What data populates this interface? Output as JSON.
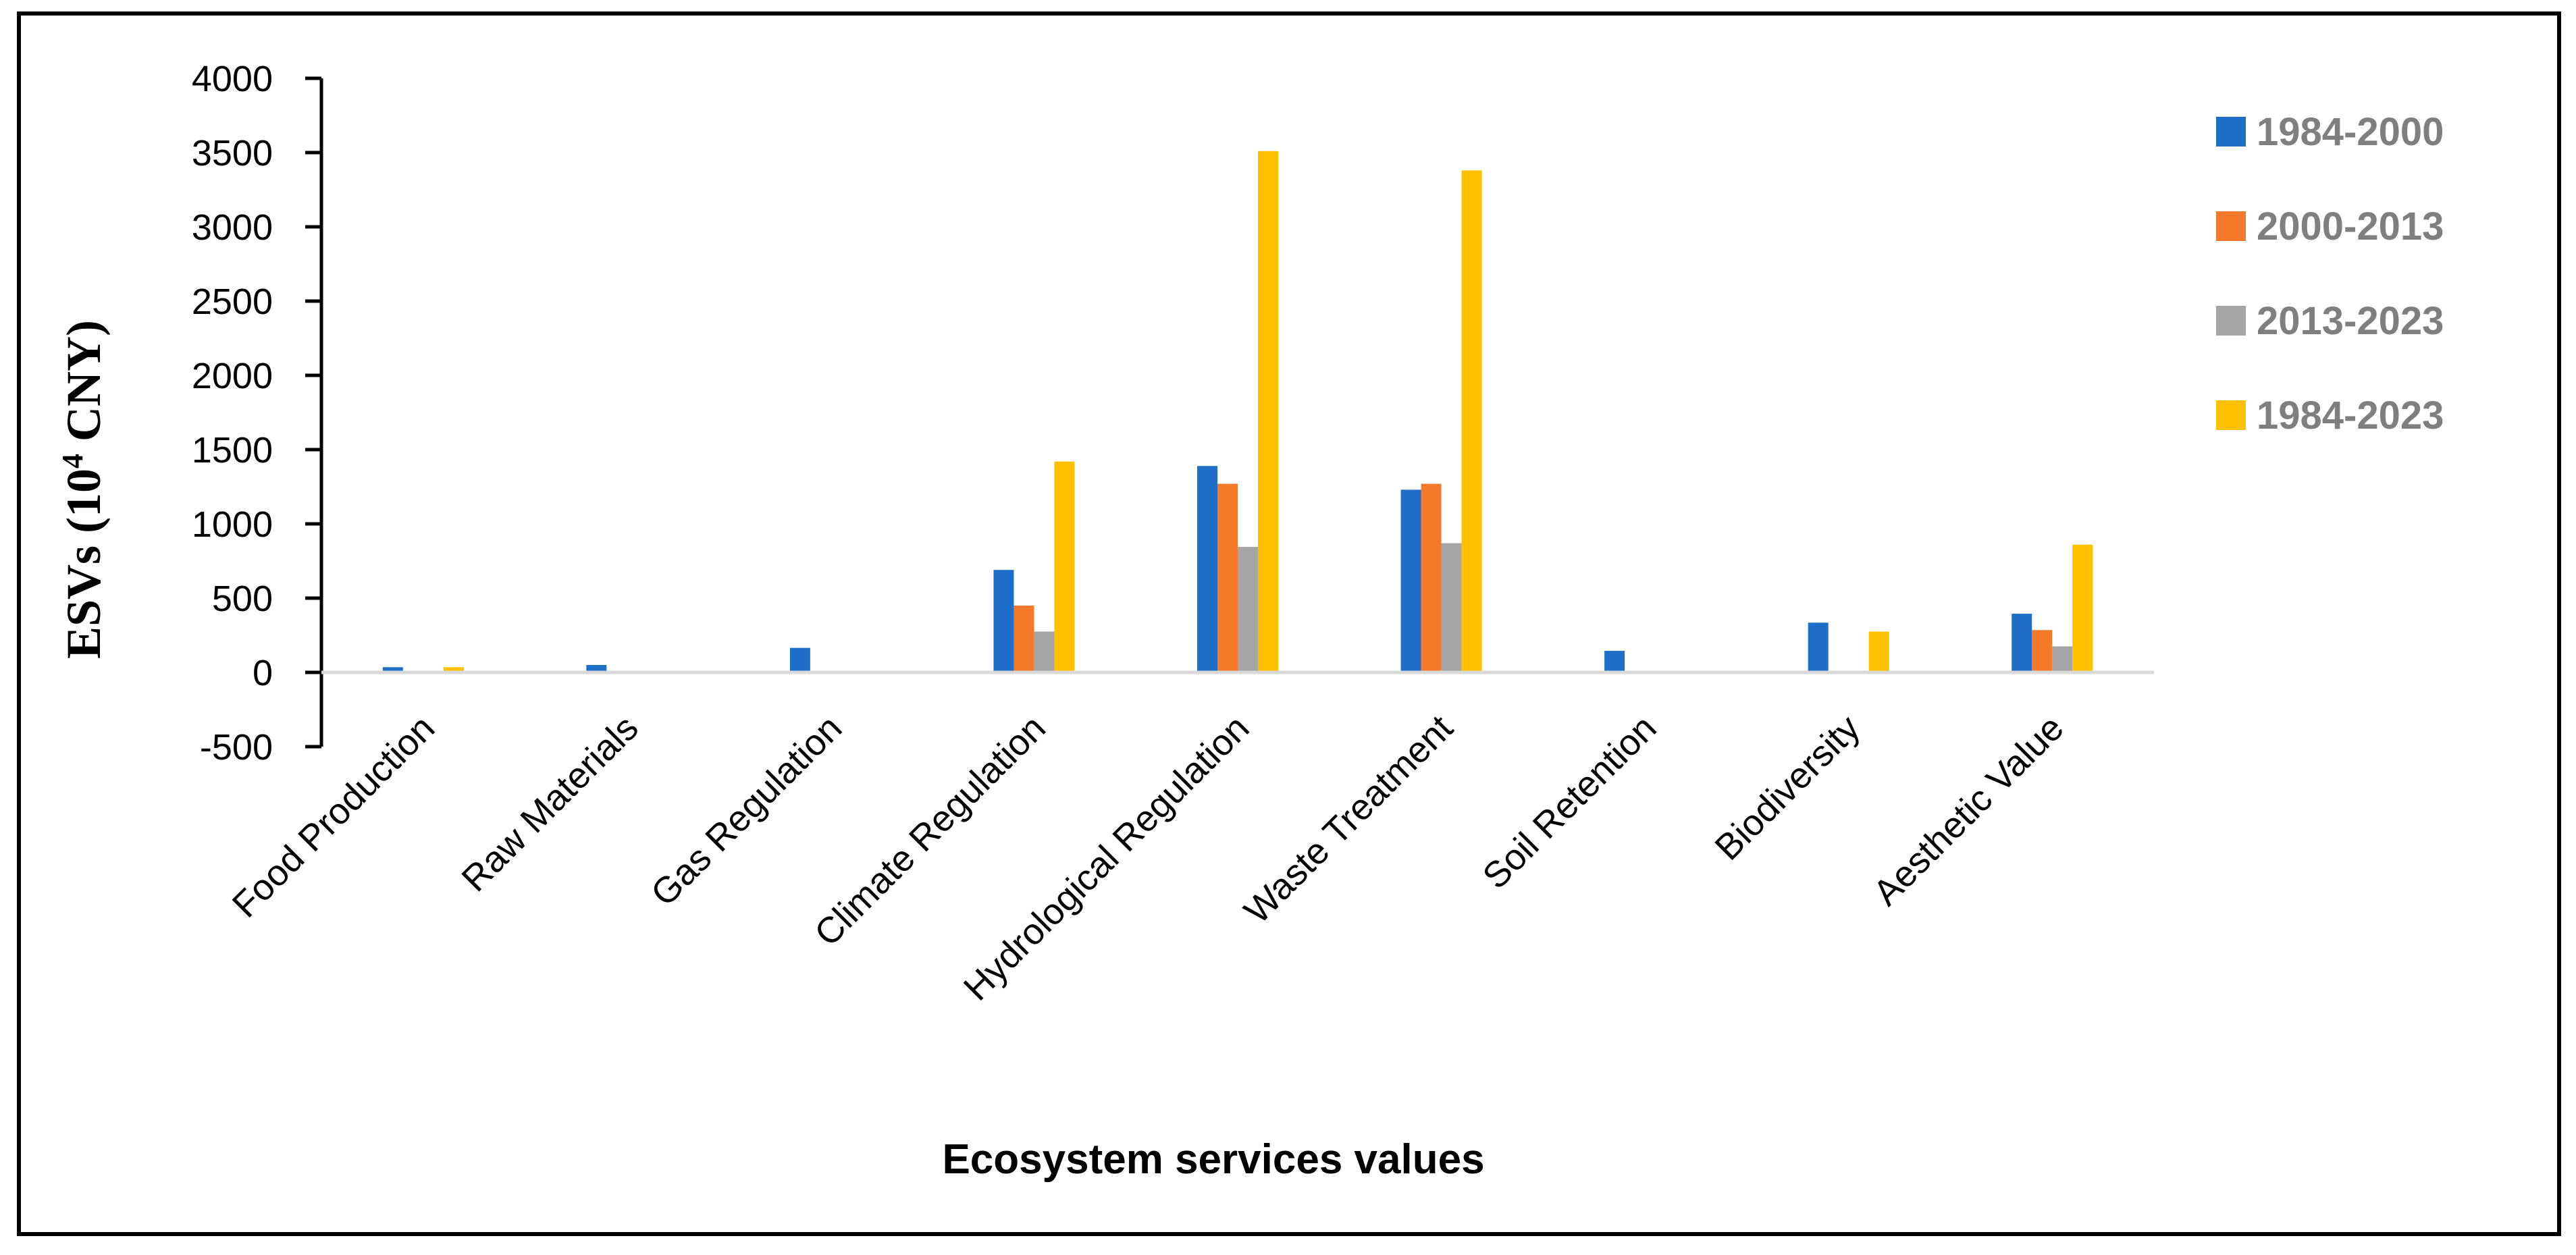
{
  "chart_data": {
    "type": "bar",
    "title": "",
    "xlabel": "Ecosystem services values",
    "ylabel": {
      "main": "ESVs (10",
      "superscript": "4",
      "suffix": " CNY)"
    },
    "ylim": [
      -500,
      4000
    ],
    "yticks": [
      "4000",
      "3500",
      "3000",
      "2500",
      "2000",
      "1500",
      "1000",
      "500",
      "0",
      "-500"
    ],
    "ytick_values": [
      4000,
      3500,
      3000,
      2500,
      2000,
      1500,
      1000,
      500,
      0,
      -500
    ],
    "grid": false,
    "legend_position": "right",
    "categories": [
      "Food Production",
      "Raw Materials",
      "Gas Regulation",
      "Climate Regulation",
      "Hydrological Regulation",
      "Waste Treatment",
      "Soil Retention",
      "Biodiversity",
      "Aesthetic Value"
    ],
    "series": [
      {
        "name": "1984-2000",
        "color": "#1f6fc9",
        "values": [
          35,
          50,
          165,
          690,
          1390,
          1230,
          145,
          335,
          395
        ]
      },
      {
        "name": "2000-2013",
        "color": "#f47a2a",
        "values": [
          0,
          0,
          0,
          450,
          1270,
          1270,
          0,
          0,
          285
        ]
      },
      {
        "name": "2013-2023",
        "color": "#a5a5a5",
        "values": [
          0,
          0,
          0,
          275,
          845,
          870,
          0,
          0,
          175
        ]
      },
      {
        "name": "1984-2023",
        "color": "#ffc000",
        "values": [
          35,
          0,
          0,
          1420,
          3510,
          3380,
          0,
          275,
          860
        ]
      }
    ]
  }
}
